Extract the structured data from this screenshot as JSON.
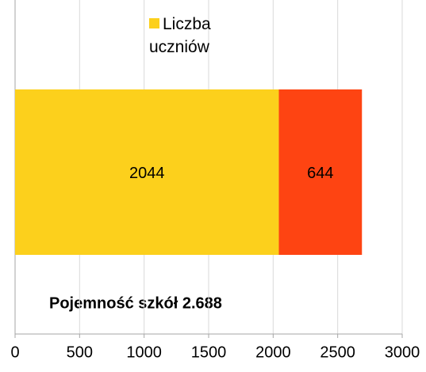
{
  "chart_data": {
    "type": "bar",
    "orientation": "horizontal",
    "stacked": true,
    "categories": [
      null
    ],
    "series": [
      {
        "name": "Liczba uczniów",
        "color": "#fcd01c",
        "values": [
          2044
        ]
      },
      {
        "color": "#fe4412",
        "values": [
          644
        ]
      }
    ],
    "xlim": [
      0,
      3000
    ],
    "xticks": [
      0,
      500,
      1000,
      1500,
      2000,
      2500,
      3000
    ],
    "grid": true,
    "annotation": "Pojemność szkół 2.688"
  }
}
